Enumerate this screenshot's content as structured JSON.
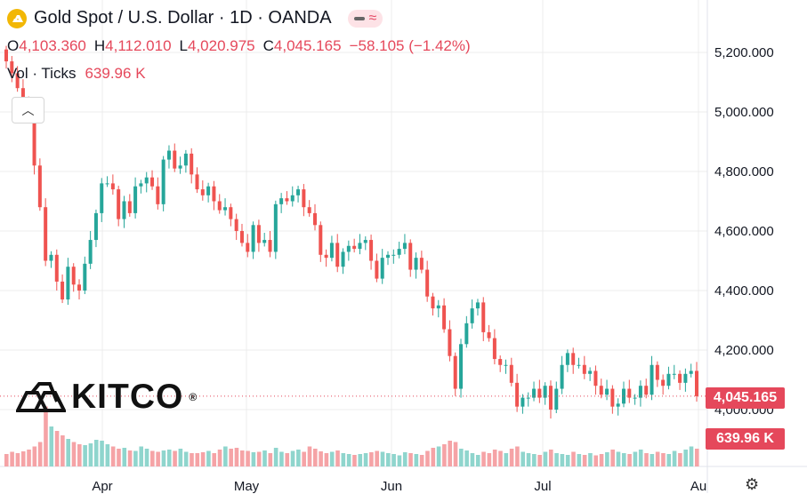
{
  "header": {
    "title": "Gold Spot / U.S. Dollar · 1D · OANDA",
    "ohlc": {
      "o_label": "O",
      "o": "4,103.360",
      "h_label": "H",
      "h": "4,112.010",
      "l_label": "L",
      "l": "4,020.975",
      "c_label": "C",
      "c": "4,045.165",
      "change": "−58.105 (−1.42%)"
    },
    "volume_label": "Vol · Ticks",
    "volume_value": "639.96 K"
  },
  "watermark": "KITCO",
  "colors": {
    "up": "#26a69a",
    "down": "#ef5350",
    "vol_up": "#8fd5cd",
    "vol_down": "#f5a3a6"
  },
  "chart_data": {
    "type": "candlestick",
    "y_ticks": [
      "5,200.000",
      "5,000.000",
      "4,800.000",
      "4,600.000",
      "4,400.000",
      "4,200.000",
      "4,000.000"
    ],
    "x_labels": [
      "Apr",
      "May",
      "Jun",
      "Jul",
      "Au"
    ],
    "ylim": [
      3970,
      5250
    ],
    "last_price": "4,045.165",
    "last_volume": "639.96 K",
    "grid": true,
    "closes": [
      5170,
      5130,
      5080,
      5040,
      5000,
      4820,
      4680,
      4500,
      4520,
      4430,
      4370,
      4480,
      4420,
      4400,
      4490,
      4570,
      4660,
      4760,
      4760,
      4740,
      4640,
      4700,
      4660,
      4750,
      4760,
      4780,
      4750,
      4690,
      4840,
      4870,
      4810,
      4820,
      4860,
      4790,
      4740,
      4720,
      4750,
      4700,
      4670,
      4680,
      4640,
      4600,
      4560,
      4530,
      4620,
      4560,
      4570,
      4530,
      4690,
      4710,
      4700,
      4720,
      4740,
      4680,
      4660,
      4620,
      4520,
      4510,
      4560,
      4480,
      4530,
      4550,
      4540,
      4560,
      4570,
      4500,
      4440,
      4510,
      4520,
      4520,
      4540,
      4560,
      4470,
      4510,
      4470,
      4380,
      4340,
      4350,
      4270,
      4180,
      4070,
      4220,
      4290,
      4340,
      4360,
      4260,
      4240,
      4170,
      4150,
      4150,
      4090,
      4010,
      4040,
      4040,
      4070,
      4040,
      4080,
      4000,
      4070,
      4150,
      4190,
      4150,
      4150,
      4120,
      4130,
      4080,
      4050,
      4070,
      4010,
      4020,
      4070,
      4040,
      4040,
      4080,
      4050,
      4150,
      4100,
      4080,
      4120,
      4120,
      4090,
      4120,
      4130,
      4045
    ],
    "volumes": [
      0.28,
      0.33,
      0.3,
      0.34,
      0.38,
      0.45,
      0.55,
      1.35,
      0.9,
      0.8,
      0.7,
      0.62,
      0.55,
      0.5,
      0.48,
      0.52,
      0.6,
      0.58,
      0.5,
      0.45,
      0.4,
      0.42,
      0.36,
      0.35,
      0.45,
      0.4,
      0.35,
      0.33,
      0.36,
      0.38,
      0.35,
      0.4,
      0.33,
      0.3,
      0.3,
      0.32,
      0.35,
      0.3,
      0.38,
      0.45,
      0.4,
      0.42,
      0.36,
      0.35,
      0.32,
      0.33,
      0.36,
      0.3,
      0.42,
      0.33,
      0.3,
      0.35,
      0.38,
      0.33,
      0.45,
      0.4,
      0.34,
      0.3,
      0.33,
      0.36,
      0.3,
      0.28,
      0.26,
      0.28,
      0.3,
      0.32,
      0.35,
      0.33,
      0.3,
      0.28,
      0.25,
      0.32,
      0.3,
      0.28,
      0.26,
      0.35,
      0.42,
      0.45,
      0.5,
      0.58,
      0.55,
      0.4,
      0.36,
      0.3,
      0.26,
      0.33,
      0.3,
      0.38,
      0.35,
      0.3,
      0.4,
      0.45,
      0.33,
      0.3,
      0.28,
      0.26,
      0.33,
      0.38,
      0.3,
      0.28,
      0.26,
      0.33,
      0.28,
      0.26,
      0.3,
      0.25,
      0.28,
      0.32,
      0.38,
      0.33,
      0.3,
      0.28,
      0.33,
      0.38,
      0.3,
      0.28,
      0.33,
      0.3,
      0.28,
      0.35,
      0.3,
      0.38,
      0.45,
      0.4
    ]
  }
}
